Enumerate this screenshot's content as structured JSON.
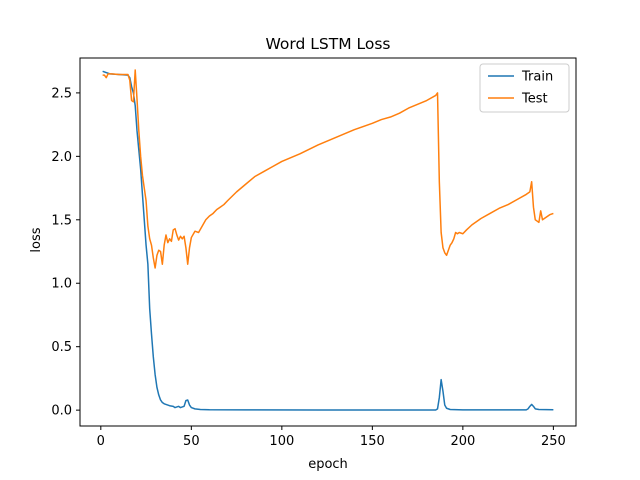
{
  "chart_data": {
    "type": "line",
    "title": "Word LSTM Loss",
    "xlabel": "epoch",
    "ylabel": "loss",
    "xlim": [
      -11.5,
      262.5
    ],
    "ylim": [
      -0.125,
      2.775
    ],
    "xticks": [
      0,
      50,
      100,
      150,
      200,
      250
    ],
    "yticks": [
      0.0,
      0.5,
      1.0,
      1.5,
      2.0,
      2.5
    ],
    "ytick_labels": [
      "0.0",
      "0.5",
      "1.0",
      "1.5",
      "2.0",
      "2.5"
    ],
    "legend_position": "upper right",
    "grid": false,
    "series": [
      {
        "name": "Train",
        "color": "#1f77b4",
        "points": [
          [
            1,
            2.67
          ],
          [
            5,
            2.65
          ],
          [
            10,
            2.645
          ],
          [
            15,
            2.64
          ],
          [
            16,
            2.62
          ],
          [
            17,
            2.55
          ],
          [
            18,
            2.5
          ],
          [
            19,
            2.4
          ],
          [
            20,
            2.2
          ],
          [
            21,
            2.05
          ],
          [
            22,
            1.9
          ],
          [
            23,
            1.7
          ],
          [
            24,
            1.5
          ],
          [
            25,
            1.3
          ],
          [
            26,
            1.15
          ],
          [
            27,
            0.8
          ],
          [
            28,
            0.6
          ],
          [
            29,
            0.42
          ],
          [
            30,
            0.28
          ],
          [
            31,
            0.18
          ],
          [
            32,
            0.12
          ],
          [
            33,
            0.08
          ],
          [
            34,
            0.06
          ],
          [
            35,
            0.05
          ],
          [
            36,
            0.045
          ],
          [
            37,
            0.04
          ],
          [
            38,
            0.035
          ],
          [
            40,
            0.03
          ],
          [
            41,
            0.02
          ],
          [
            42,
            0.025
          ],
          [
            43,
            0.03
          ],
          [
            44,
            0.02
          ],
          [
            45,
            0.025
          ],
          [
            46,
            0.03
          ],
          [
            47,
            0.075
          ],
          [
            48,
            0.08
          ],
          [
            49,
            0.04
          ],
          [
            50,
            0.02
          ],
          [
            52,
            0.01
          ],
          [
            55,
            0.005
          ],
          [
            60,
            0.003
          ],
          [
            80,
            0.002
          ],
          [
            120,
            0.001
          ],
          [
            185,
            0.001
          ],
          [
            186,
            0.01
          ],
          [
            187,
            0.1
          ],
          [
            188,
            0.24
          ],
          [
            189,
            0.15
          ],
          [
            190,
            0.04
          ],
          [
            191,
            0.015
          ],
          [
            193,
            0.005
          ],
          [
            200,
            0.002
          ],
          [
            235,
            0.002
          ],
          [
            236,
            0.01
          ],
          [
            237,
            0.03
          ],
          [
            238,
            0.045
          ],
          [
            239,
            0.03
          ],
          [
            240,
            0.01
          ],
          [
            242,
            0.005
          ],
          [
            250,
            0.003
          ]
        ]
      },
      {
        "name": "Test",
        "color": "#ff7f0e",
        "points": [
          [
            1,
            2.64
          ],
          [
            2,
            2.64
          ],
          [
            3,
            2.62
          ],
          [
            4,
            2.65
          ],
          [
            6,
            2.65
          ],
          [
            10,
            2.645
          ],
          [
            15,
            2.645
          ],
          [
            16,
            2.6
          ],
          [
            17,
            2.44
          ],
          [
            18,
            2.43
          ],
          [
            19,
            2.68
          ],
          [
            20,
            2.45
          ],
          [
            21,
            2.2
          ],
          [
            22,
            2.0
          ],
          [
            23,
            1.85
          ],
          [
            24,
            1.75
          ],
          [
            25,
            1.65
          ],
          [
            26,
            1.45
          ],
          [
            27,
            1.35
          ],
          [
            28,
            1.3
          ],
          [
            29,
            1.2
          ],
          [
            30,
            1.12
          ],
          [
            31,
            1.22
          ],
          [
            32,
            1.26
          ],
          [
            33,
            1.25
          ],
          [
            34,
            1.15
          ],
          [
            35,
            1.3
          ],
          [
            36,
            1.38
          ],
          [
            37,
            1.32
          ],
          [
            38,
            1.35
          ],
          [
            39,
            1.33
          ],
          [
            40,
            1.42
          ],
          [
            41,
            1.43
          ],
          [
            42,
            1.38
          ],
          [
            43,
            1.34
          ],
          [
            44,
            1.37
          ],
          [
            45,
            1.35
          ],
          [
            46,
            1.37
          ],
          [
            47,
            1.28
          ],
          [
            48,
            1.15
          ],
          [
            49,
            1.28
          ],
          [
            50,
            1.36
          ],
          [
            52,
            1.41
          ],
          [
            54,
            1.4
          ],
          [
            56,
            1.45
          ],
          [
            58,
            1.5
          ],
          [
            60,
            1.53
          ],
          [
            62,
            1.55
          ],
          [
            64,
            1.58
          ],
          [
            66,
            1.6
          ],
          [
            68,
            1.62
          ],
          [
            70,
            1.65
          ],
          [
            75,
            1.72
          ],
          [
            80,
            1.78
          ],
          [
            85,
            1.84
          ],
          [
            90,
            1.88
          ],
          [
            95,
            1.92
          ],
          [
            100,
            1.96
          ],
          [
            110,
            2.02
          ],
          [
            120,
            2.09
          ],
          [
            130,
            2.15
          ],
          [
            140,
            2.21
          ],
          [
            150,
            2.26
          ],
          [
            155,
            2.29
          ],
          [
            160,
            2.31
          ],
          [
            165,
            2.34
          ],
          [
            170,
            2.38
          ],
          [
            175,
            2.41
          ],
          [
            180,
            2.44
          ],
          [
            185,
            2.48
          ],
          [
            186,
            2.5
          ],
          [
            187,
            1.8
          ],
          [
            188,
            1.4
          ],
          [
            189,
            1.28
          ],
          [
            190,
            1.24
          ],
          [
            191,
            1.22
          ],
          [
            192,
            1.26
          ],
          [
            193,
            1.3
          ],
          [
            194,
            1.32
          ],
          [
            195,
            1.35
          ],
          [
            196,
            1.4
          ],
          [
            197,
            1.39
          ],
          [
            198,
            1.4
          ],
          [
            200,
            1.39
          ],
          [
            202,
            1.42
          ],
          [
            205,
            1.46
          ],
          [
            210,
            1.51
          ],
          [
            215,
            1.55
          ],
          [
            220,
            1.59
          ],
          [
            225,
            1.62
          ],
          [
            230,
            1.66
          ],
          [
            235,
            1.7
          ],
          [
            236,
            1.71
          ],
          [
            237,
            1.72
          ],
          [
            238,
            1.8
          ],
          [
            239,
            1.6
          ],
          [
            240,
            1.5
          ],
          [
            241,
            1.49
          ],
          [
            242,
            1.48
          ],
          [
            243,
            1.57
          ],
          [
            244,
            1.5
          ],
          [
            245,
            1.51
          ],
          [
            246,
            1.52
          ],
          [
            248,
            1.54
          ],
          [
            250,
            1.55
          ]
        ]
      }
    ]
  }
}
